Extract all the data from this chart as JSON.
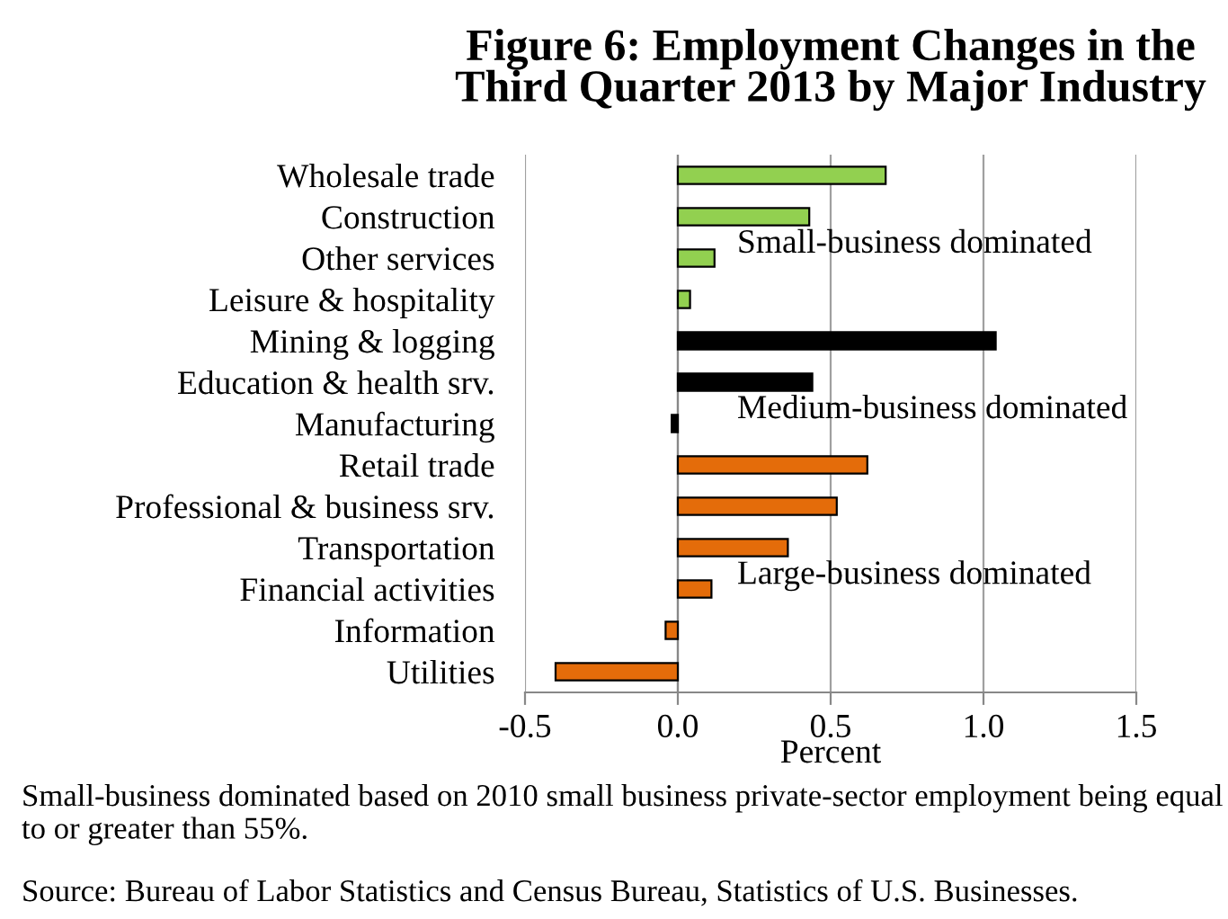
{
  "chart_data": {
    "type": "bar",
    "orientation": "horizontal",
    "title": "Figure 6: Employment Changes in the\nThird Quarter 2013 by Major Industry",
    "xlabel": "Percent",
    "categories": [
      "Wholesale trade",
      "Construction",
      "Other services",
      "Leisure & hospitality",
      "Mining & logging",
      "Education & health srv.",
      "Manufacturing",
      "Retail trade",
      "Professional & business srv.",
      "Transportation",
      "Financial activities",
      "Information",
      "Utilities"
    ],
    "values": [
      0.68,
      0.43,
      0.12,
      0.04,
      1.04,
      0.44,
      -0.02,
      0.62,
      0.52,
      0.36,
      0.11,
      -0.04,
      -0.4
    ],
    "colors": [
      "#92d050",
      "#92d050",
      "#92d050",
      "#92d050",
      "#000000",
      "#000000",
      "#000000",
      "#e46c0a",
      "#e46c0a",
      "#e46c0a",
      "#e46c0a",
      "#e46c0a",
      "#e46c0a"
    ],
    "xlim": [
      -0.5,
      1.5
    ],
    "xticks": [
      {
        "value": -0.5,
        "label": "-0.5"
      },
      {
        "value": 0,
        "label": "0.0"
      },
      {
        "value": 0.5,
        "label": "0.5"
      },
      {
        "value": 1,
        "label": "1.0"
      },
      {
        "value": 1.5,
        "label": "1.5"
      }
    ],
    "grid": "x",
    "annotations": [
      "Small-business dominated",
      "Medium-business dominated",
      "Large-business dominated",
      "Small-business dominated based on 2010 small business private-sector employment being equal to or greater than 55%.",
      "Source: Bureau of Labor Statistics and Census Bureau, Statistics of U.S. Businesses."
    ]
  }
}
